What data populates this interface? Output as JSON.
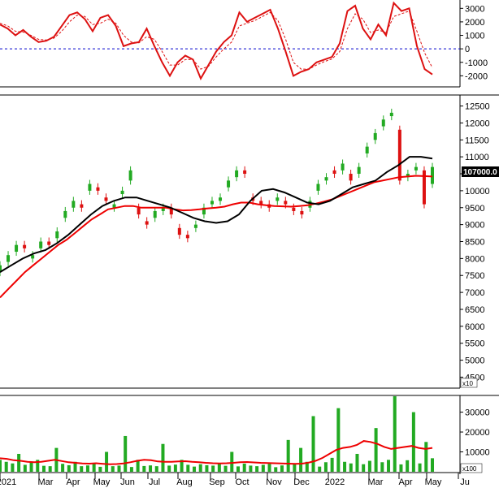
{
  "colors": {
    "up_candle": "#22aa22",
    "down_candle": "#dd1111",
    "ma_long": "#ee0000",
    "ma_short": "#000000",
    "oscillator": "#dd1111",
    "osc_signal": "#dd1111",
    "zero_line": "#0000cc",
    "price_tag_bg": "#000000",
    "price_tag_text": "#ffffff",
    "volume_bar": "#22aa22",
    "volume_ma": "#ee0000"
  },
  "x_axis": {
    "labels": [
      "2021",
      "Mar",
      "Apr",
      "May",
      "Jun",
      "Jul",
      "Aug",
      "Sep",
      "Oct",
      "Nov",
      "Dec",
      "2022",
      "Mar",
      "Apr",
      "May",
      "Ju"
    ]
  },
  "price_tag": "107000.0",
  "multipliers": {
    "price": "x10",
    "volume": "x100"
  },
  "chart_data": [
    {
      "type": "line",
      "title": "",
      "ylim": [
        -2700,
        3500
      ],
      "y_ticks": [
        3000,
        2000,
        1000,
        0,
        -1000,
        -2000
      ],
      "y_tick_labels": [
        "3000",
        "2000",
        "1000",
        "0",
        "-1000",
        "-2000"
      ],
      "zero_line": true,
      "series": [
        {
          "role": "oscillator",
          "values": [
            1800,
            1500,
            1000,
            1400,
            900,
            500,
            600,
            900,
            1700,
            2500,
            2700,
            2200,
            1300,
            2300,
            2500,
            1700,
            200,
            400,
            500,
            1500,
            200,
            -1000,
            -2000,
            -1000,
            -500,
            -800,
            -2200,
            -1200,
            -200,
            500,
            1000,
            2700,
            2000,
            2300,
            2600,
            2900,
            1500,
            -200,
            -2000,
            -1700,
            -1500,
            -1000,
            -800,
            -600,
            400,
            2800,
            3200,
            1500,
            700,
            1800,
            1000,
            3400,
            2800,
            3000,
            200,
            -1500,
            -1900
          ]
        },
        {
          "role": "signal",
          "values": [
            1900,
            1700,
            1300,
            1250,
            1000,
            700,
            650,
            800,
            1300,
            2000,
            2500,
            2400,
            1800,
            1900,
            2200,
            1900,
            1000,
            500,
            450,
            900,
            700,
            -200,
            -1200,
            -1200,
            -800,
            -800,
            -1500,
            -1300,
            -600,
            0,
            500,
            1700,
            1900,
            2100,
            2400,
            2700,
            2100,
            700,
            -1000,
            -1500,
            -1500,
            -1200,
            -950,
            -750,
            -200,
            1500,
            2600,
            2200,
            1200,
            1400,
            1200,
            2400,
            2600,
            2800,
            1300,
            -300,
            -1400
          ]
        }
      ]
    },
    {
      "type": "line",
      "title": "",
      "ylim": [
        4200,
        12800
      ],
      "y_ticks": [
        4500,
        5000,
        5500,
        6000,
        6500,
        7000,
        7500,
        8000,
        8500,
        9000,
        9500,
        10000,
        10500,
        11000,
        11500,
        12000,
        12500
      ],
      "y_tick_labels": [
        "4500",
        "5000",
        "5500",
        "6000",
        "6500",
        "7000",
        "7500",
        "8000",
        "8500",
        "9000",
        "9500",
        "10000",
        "10500",
        "11000",
        "11500",
        "12000",
        "12500"
      ],
      "candles": {
        "close": [
          7800,
          8100,
          8400,
          8300,
          8100,
          8500,
          8400,
          8800,
          9400,
          9700,
          9500,
          10200,
          10000,
          9700,
          9600,
          10000,
          10600,
          9300,
          9000,
          9400,
          9500,
          9300,
          8700,
          8600,
          9000,
          9500,
          9700,
          9800,
          10300,
          10600,
          10500,
          9700,
          9600,
          9500,
          9800,
          9600,
          9400,
          9300,
          9700,
          10200,
          10400,
          10500,
          10800,
          10300,
          10700,
          11300,
          11700,
          12100,
          12300,
          10300,
          10500,
          10700,
          9600,
          10700
        ],
        "open": [
          7600,
          7900,
          8200,
          8400,
          8000,
          8300,
          8500,
          8600,
          9200,
          9500,
          9600,
          10000,
          10100,
          9800,
          9500,
          9900,
          10300,
          9500,
          9100,
          9200,
          9400,
          9500,
          8900,
          8700,
          8900,
          9300,
          9600,
          9700,
          10100,
          10400,
          10600,
          9800,
          9700,
          9600,
          9700,
          9700,
          9500,
          9400,
          9500,
          10000,
          10300,
          10600,
          10600,
          10500,
          10500,
          11100,
          11500,
          11900,
          12200,
          11800,
          10400,
          10600,
          10600,
          10200
        ]
      },
      "series": [
        {
          "role": "ma_long",
          "values": [
            6850,
            7100,
            7350,
            7600,
            7800,
            8000,
            8200,
            8400,
            8550,
            8750,
            8950,
            9150,
            9300,
            9450,
            9500,
            9550,
            9550,
            9500,
            9500,
            9500,
            9500,
            9450,
            9420,
            9430,
            9450,
            9480,
            9500,
            9530,
            9600,
            9650,
            9650,
            9600,
            9570,
            9550,
            9540,
            9530,
            9550,
            9570,
            9620,
            9680,
            9750,
            9850,
            9950,
            10050,
            10150,
            10250,
            10300,
            10350,
            10400,
            10420,
            10440,
            10430,
            10420
          ]
        },
        {
          "role": "ma_short",
          "values": [
            7600,
            7800,
            8000,
            8150,
            8250,
            8450,
            8700,
            9000,
            9300,
            9550,
            9700,
            9800,
            9800,
            9700,
            9600,
            9500,
            9350,
            9200,
            9100,
            9050,
            9100,
            9300,
            9700,
            10000,
            10050,
            9950,
            9800,
            9650,
            9600,
            9700,
            9900,
            10100,
            10200,
            10300,
            10550,
            10750,
            11000,
            11000,
            10950
          ]
        }
      ]
    },
    {
      "type": "bar",
      "title": "",
      "ylim": [
        0,
        38000
      ],
      "y_ticks": [
        30000,
        20000,
        10000
      ],
      "y_tick_labels": [
        "30000",
        "20000",
        "10000"
      ],
      "series": [
        {
          "role": "volume",
          "values": [
            6000,
            5000,
            4200,
            9000,
            3500,
            4800,
            6000,
            3000,
            2800,
            12000,
            4000,
            3300,
            5000,
            2800,
            3200,
            4000,
            2500,
            10000,
            2800,
            3100,
            18000,
            2400,
            6000,
            2900,
            3200,
            2800,
            14000,
            3100,
            3600,
            6000,
            3500,
            2600,
            3800,
            3300,
            3100,
            4000,
            3000,
            10000,
            2700,
            4100,
            3100,
            2800,
            3500,
            4000,
            2300,
            3200,
            16000,
            3700,
            12000,
            5000,
            28000,
            2600,
            4800,
            7000,
            32000,
            5000,
            4200,
            9000,
            3800,
            5500,
            22000,
            4800,
            6000,
            38000,
            3700,
            5800,
            30000,
            4200,
            15000,
            6800
          ]
        },
        {
          "role": "volume_ma",
          "values": [
            6800,
            6500,
            5800,
            5500,
            5000,
            4800,
            5000,
            5500,
            6000,
            5400,
            4800,
            4500,
            4200,
            4100,
            4300,
            4000,
            3800,
            3900,
            4200,
            4800,
            5500,
            6000,
            5800,
            5200,
            5000,
            5000,
            5200,
            5300,
            5000,
            4800,
            4500,
            4300,
            4200,
            4300,
            4500,
            4800,
            4900,
            4700,
            4500,
            4400,
            4300,
            4200,
            4100,
            4000,
            4100,
            4600,
            5500,
            7000,
            9000,
            11000,
            12000,
            12500,
            13500,
            15500,
            15000,
            14000,
            12500,
            11500,
            12000,
            12500,
            13000,
            12000,
            11500,
            12000
          ]
        }
      ]
    }
  ]
}
